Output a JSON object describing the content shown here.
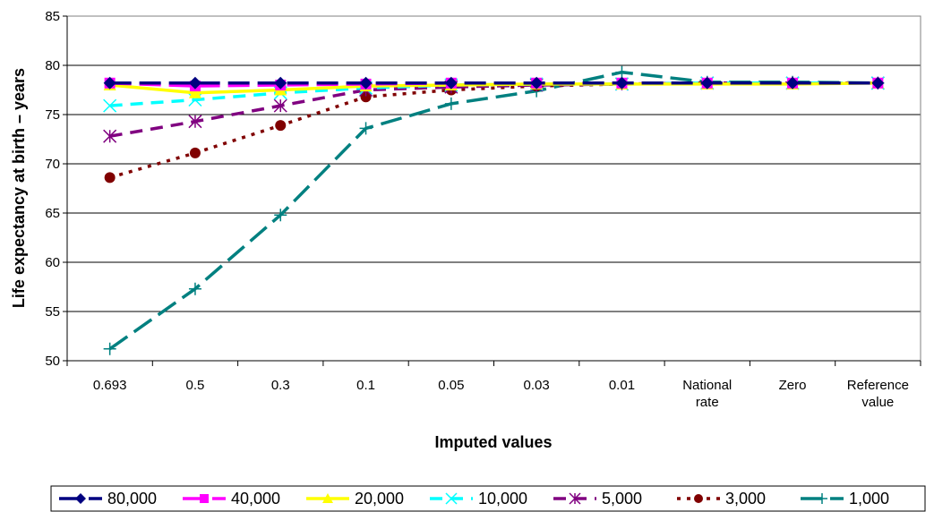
{
  "chart_data": {
    "type": "line",
    "title": "",
    "xlabel": "Imputed values",
    "ylabel": "Life expectancy at birth – years",
    "categories": [
      "0.693",
      "0.5",
      "0.3",
      "0.1",
      "0.05",
      "0.03",
      "0.01",
      "National rate",
      "Zero",
      "Reference value"
    ],
    "ylim": [
      50,
      85
    ],
    "yticks": [
      "50",
      "55",
      "60",
      "65",
      "70",
      "75",
      "80",
      "85"
    ],
    "grid": "horizontal",
    "legend_position": "bottom",
    "series": [
      {
        "name": "80,000",
        "color": "#000080",
        "marker": "diamond",
        "dash": "long-dash",
        "values": [
          78.2,
          78.2,
          78.2,
          78.2,
          78.2,
          78.2,
          78.2,
          78.2,
          78.2,
          78.2
        ]
      },
      {
        "name": "40,000",
        "color": "#FF00FF",
        "marker": "square",
        "dash": "long-dash",
        "values": [
          78.2,
          77.9,
          78.0,
          78.1,
          78.2,
          78.2,
          78.2,
          78.2,
          78.2,
          78.2
        ]
      },
      {
        "name": "20,000",
        "color": "#FFFF00",
        "marker": "triangle",
        "dash": "solid",
        "values": [
          78.0,
          77.2,
          77.5,
          77.9,
          78.0,
          78.1,
          78.1,
          78.1,
          78.1,
          78.2
        ]
      },
      {
        "name": "10,000",
        "color": "#00FFFF",
        "marker": "x",
        "dash": "dash",
        "values": [
          75.9,
          76.5,
          77.2,
          77.7,
          78.0,
          78.1,
          78.1,
          78.2,
          78.2,
          78.2
        ]
      },
      {
        "name": "5,000",
        "color": "#800080",
        "marker": "asterisk",
        "dash": "dash",
        "values": [
          72.8,
          74.3,
          75.9,
          77.5,
          77.8,
          78.0,
          78.1,
          78.2,
          78.2,
          78.2
        ]
      },
      {
        "name": "3,000",
        "color": "#800000",
        "marker": "circle",
        "dash": "dot",
        "values": [
          68.6,
          71.1,
          73.9,
          76.8,
          77.5,
          77.9,
          78.1,
          78.2,
          78.2,
          78.2
        ]
      },
      {
        "name": "1,000",
        "color": "#008080",
        "marker": "plus",
        "dash": "long-dash",
        "values": [
          51.2,
          57.3,
          64.8,
          73.6,
          76.1,
          77.4,
          79.3,
          78.3,
          78.3,
          78.2
        ]
      }
    ]
  }
}
